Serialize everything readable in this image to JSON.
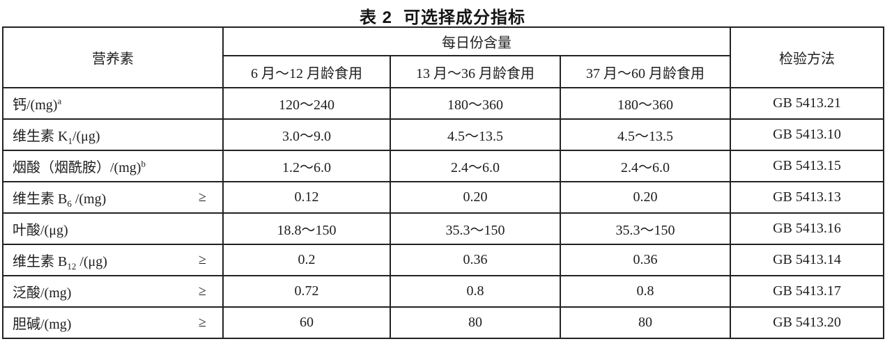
{
  "colors": {
    "ink": "#1d1d1d",
    "border": "#222222",
    "background": "#ffffff"
  },
  "title": {
    "label": "表 2",
    "text": "可选择成分指标"
  },
  "table": {
    "header": {
      "nutrient": "营养素",
      "daily_content": "每日份含量",
      "age_groups": [
        "6 月～12 月龄食用",
        "13 月～36 月龄食用",
        "37 月～60 月龄食用"
      ],
      "method": "检验方法"
    },
    "geq_symbol": "≥",
    "rows": [
      {
        "nutrient_parts": [
          {
            "t": "钙/(mg)"
          },
          {
            "sup": "a"
          }
        ],
        "geq": false,
        "values": [
          "120～240",
          "180～360",
          "180～360"
        ],
        "method": "GB 5413.21"
      },
      {
        "nutrient_parts": [
          {
            "t": "维生素 K"
          },
          {
            "sub": "1"
          },
          {
            "t": "/(μg)"
          }
        ],
        "geq": false,
        "values": [
          "3.0～9.0",
          "4.5～13.5",
          "4.5～13.5"
        ],
        "method": "GB 5413.10"
      },
      {
        "nutrient_parts": [
          {
            "t": "烟酸（烟酰胺）/(mg)"
          },
          {
            "sup": "b"
          }
        ],
        "geq": false,
        "values": [
          "1.2～6.0",
          "2.4～6.0",
          "2.4～6.0"
        ],
        "method": "GB 5413.15"
      },
      {
        "nutrient_parts": [
          {
            "t": "维生素 B"
          },
          {
            "sub": "6"
          },
          {
            "t": " /(mg)"
          }
        ],
        "geq": true,
        "values": [
          "0.12",
          "0.20",
          "0.20"
        ],
        "method": "GB 5413.13"
      },
      {
        "nutrient_parts": [
          {
            "t": "叶酸/(μg)"
          }
        ],
        "geq": false,
        "values": [
          "18.8～150",
          "35.3～150",
          "35.3～150"
        ],
        "method": "GB 5413.16"
      },
      {
        "nutrient_parts": [
          {
            "t": "维生素 B"
          },
          {
            "sub": "12"
          },
          {
            "t": " /(μg)"
          }
        ],
        "geq": true,
        "values": [
          "0.2",
          "0.36",
          "0.36"
        ],
        "method": "GB 5413.14"
      },
      {
        "nutrient_parts": [
          {
            "t": "泛酸/(mg)"
          }
        ],
        "geq": true,
        "values": [
          "0.72",
          "0.8",
          "0.8"
        ],
        "method": "GB 5413.17"
      },
      {
        "nutrient_parts": [
          {
            "t": "胆碱/(mg)"
          }
        ],
        "geq": true,
        "values": [
          "60",
          "80",
          "80"
        ],
        "method": "GB 5413.20"
      }
    ]
  }
}
